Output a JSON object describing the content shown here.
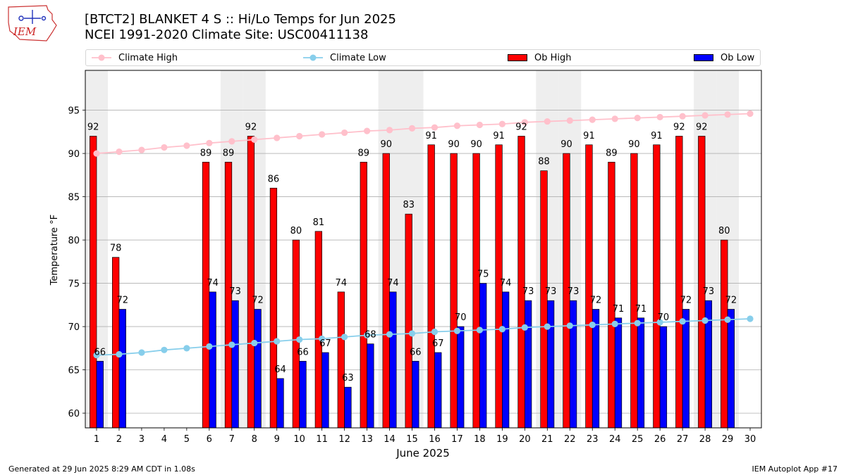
{
  "header": {
    "title_line1": "[BTCT2] BLANKET 4 S :: Hi/Lo Temps for Jun 2025",
    "title_line2": "NCEI 1991-2020 Climate Site: USC00411138",
    "logo_text": "IEM"
  },
  "legend": {
    "climate_high": "Climate High",
    "climate_low": "Climate Low",
    "ob_high": "Ob High",
    "ob_low": "Ob Low"
  },
  "footer": {
    "generated": "Generated at 29 Jun 2025 8:29 AM CDT in 1.08s",
    "app": "IEM Autoplot App #17"
  },
  "colors": {
    "ob_high": "#ff0000",
    "ob_low": "#0000ff",
    "climate_high": "#ffc0cb",
    "climate_low": "#87ceeb",
    "weekend_band": "#eeeeee",
    "grid": "#b0b0b0"
  },
  "chart_data": {
    "type": "bar",
    "title": "[BTCT2] BLANKET 4 S :: Hi/Lo Temps for Jun 2025",
    "xlabel": "June 2025",
    "ylabel": "Temperature °F",
    "xlim": [
      0.5,
      30.5
    ],
    "ylim": [
      58.3,
      99.6
    ],
    "yticks": [
      60,
      65,
      70,
      75,
      80,
      85,
      90,
      95
    ],
    "categories": [
      1,
      2,
      3,
      4,
      5,
      6,
      7,
      8,
      9,
      10,
      11,
      12,
      13,
      14,
      15,
      16,
      17,
      18,
      19,
      20,
      21,
      22,
      23,
      24,
      25,
      26,
      27,
      28,
      29,
      30
    ],
    "shaded_days": [
      1,
      7,
      8,
      14,
      15,
      21,
      22,
      28,
      29
    ],
    "series": [
      {
        "name": "Ob High",
        "type": "bar",
        "values": [
          92,
          78,
          null,
          null,
          null,
          89,
          89,
          92,
          86,
          80,
          81,
          74,
          89,
          90,
          83,
          91,
          90,
          90,
          91,
          92,
          88,
          90,
          91,
          89,
          90,
          91,
          92,
          92,
          80,
          null
        ]
      },
      {
        "name": "Ob Low",
        "type": "bar",
        "values": [
          66,
          72,
          null,
          null,
          null,
          74,
          73,
          72,
          64,
          66,
          67,
          63,
          68,
          74,
          66,
          67,
          70,
          75,
          74,
          73,
          73,
          73,
          72,
          71,
          71,
          70,
          72,
          73,
          72,
          null
        ]
      },
      {
        "name": "Climate High",
        "type": "line",
        "values": [
          90.0,
          90.2,
          90.4,
          90.7,
          90.9,
          91.2,
          91.4,
          91.6,
          91.8,
          92.0,
          92.2,
          92.4,
          92.6,
          92.7,
          92.9,
          93.0,
          93.2,
          93.3,
          93.4,
          93.6,
          93.7,
          93.8,
          93.9,
          94.0,
          94.1,
          94.2,
          94.3,
          94.4,
          94.5,
          94.6
        ]
      },
      {
        "name": "Climate Low",
        "type": "line",
        "values": [
          66.7,
          66.8,
          67.0,
          67.3,
          67.5,
          67.7,
          67.9,
          68.1,
          68.3,
          68.5,
          68.6,
          68.8,
          69.0,
          69.1,
          69.2,
          69.4,
          69.5,
          69.6,
          69.7,
          69.9,
          70.0,
          70.1,
          70.2,
          70.3,
          70.4,
          70.5,
          70.6,
          70.7,
          70.8,
          70.9
        ]
      }
    ]
  }
}
